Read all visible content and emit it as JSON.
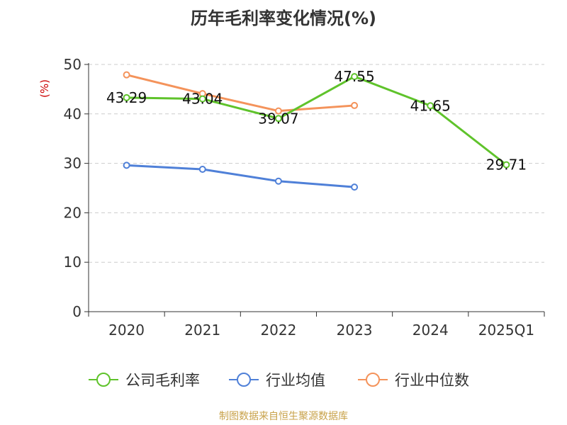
{
  "title": "历年毛利率变化情况(%)",
  "ylabel": "(%)",
  "source": "制图数据来自恒生聚源数据库",
  "colors": {
    "company": "#5fc32b",
    "industry_avg": "#4f80d8",
    "industry_median": "#f4935b",
    "ylabel": "#cc0000",
    "source": "#c8a24a",
    "grid": "#cccccc",
    "axis": "#333333"
  },
  "chart_data": {
    "type": "line",
    "categories": [
      "2020",
      "2021",
      "2022",
      "2023",
      "2024",
      "2025Q1"
    ],
    "ylim": [
      0,
      50
    ],
    "yticks": [
      0,
      10,
      20,
      30,
      40,
      50
    ],
    "grid": true,
    "legend_position": "bottom",
    "series": [
      {
        "name": "公司毛利率",
        "color": "#5fc32b",
        "values": [
          43.29,
          43.04,
          39.07,
          47.55,
          41.65,
          29.71
        ],
        "labels": true
      },
      {
        "name": "行业均值",
        "color": "#4f80d8",
        "values": [
          29.6,
          28.8,
          26.4,
          25.2,
          null,
          null
        ],
        "labels": false
      },
      {
        "name": "行业中位数",
        "color": "#f4935b",
        "values": [
          47.9,
          44.1,
          40.6,
          41.7,
          null,
          null
        ],
        "labels": false
      }
    ]
  }
}
